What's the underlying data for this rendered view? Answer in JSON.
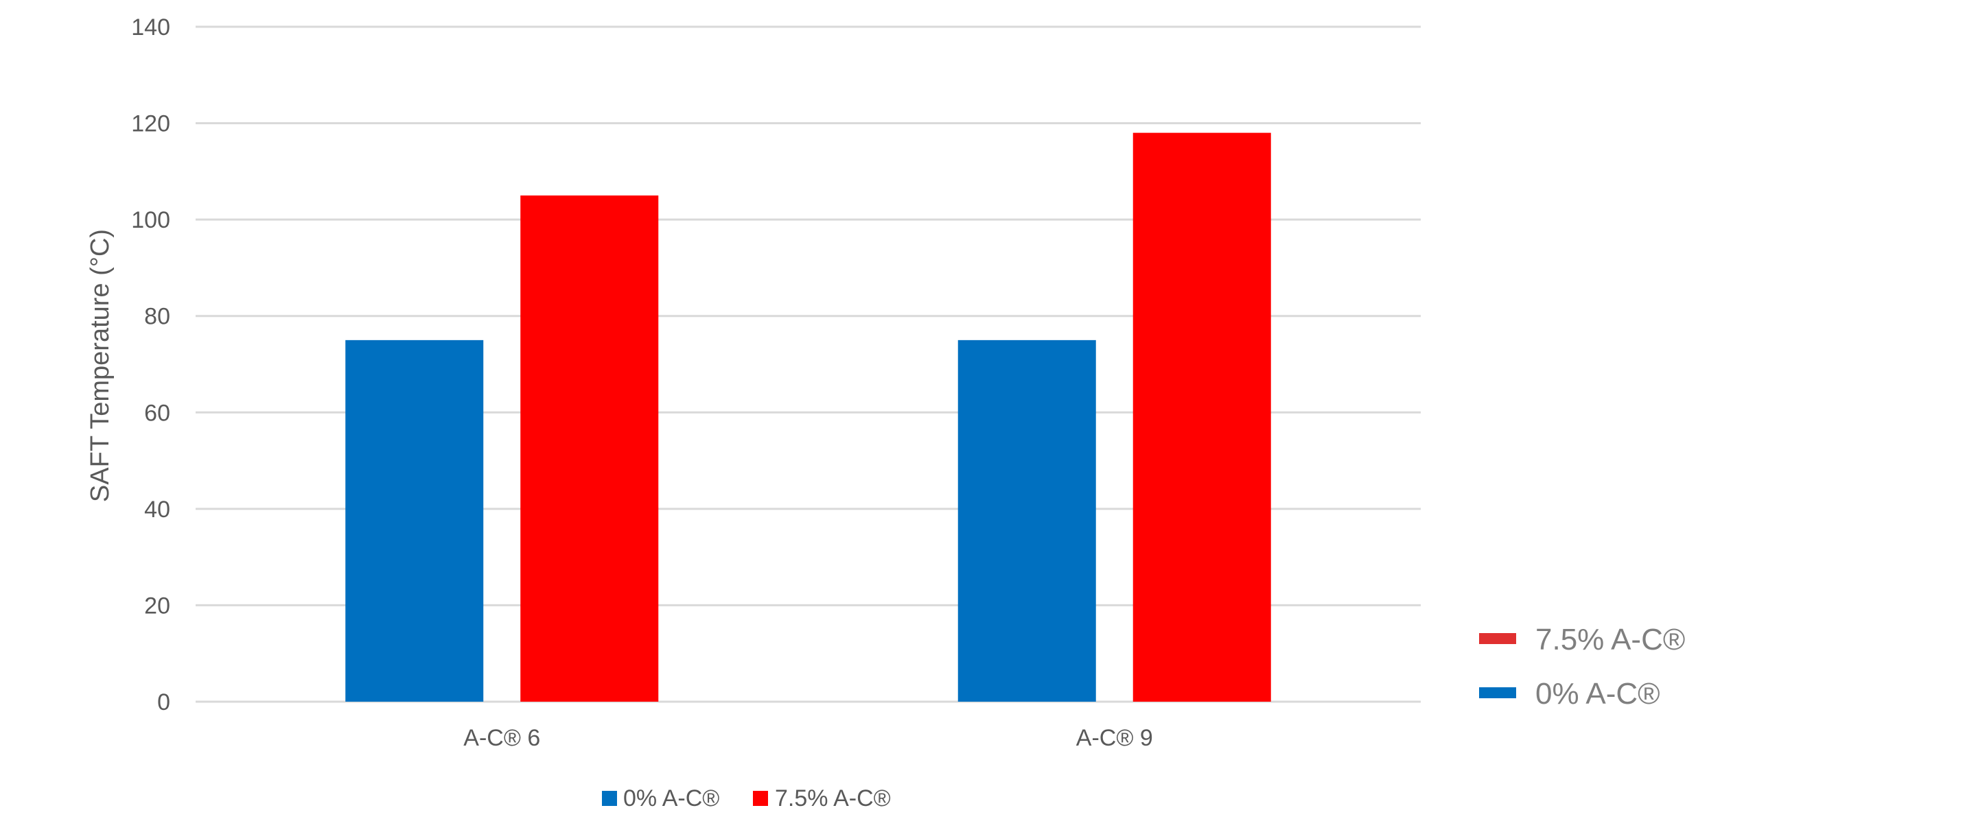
{
  "chart_data": {
    "type": "bar",
    "title": "",
    "xlabel": "",
    "ylabel": "SAFT Temperature (°C)",
    "ylim": [
      0,
      140
    ],
    "yticks": [
      0,
      20,
      40,
      60,
      80,
      100,
      120,
      140
    ],
    "categories": [
      "A-C® 6",
      "A-C® 9"
    ],
    "series": [
      {
        "name": "0% A-C®",
        "color": "#0070C0",
        "values": [
          75,
          75
        ]
      },
      {
        "name": "7.5% A-C®",
        "color": "#FF0000",
        "values": [
          105,
          118
        ]
      }
    ],
    "grid": true,
    "legend": "bottom"
  },
  "side_legend": {
    "items": [
      {
        "label": "7.5% A-C®",
        "color": "#E03030"
      },
      {
        "label": "0% A-C®",
        "color": "#0070C0"
      }
    ]
  }
}
